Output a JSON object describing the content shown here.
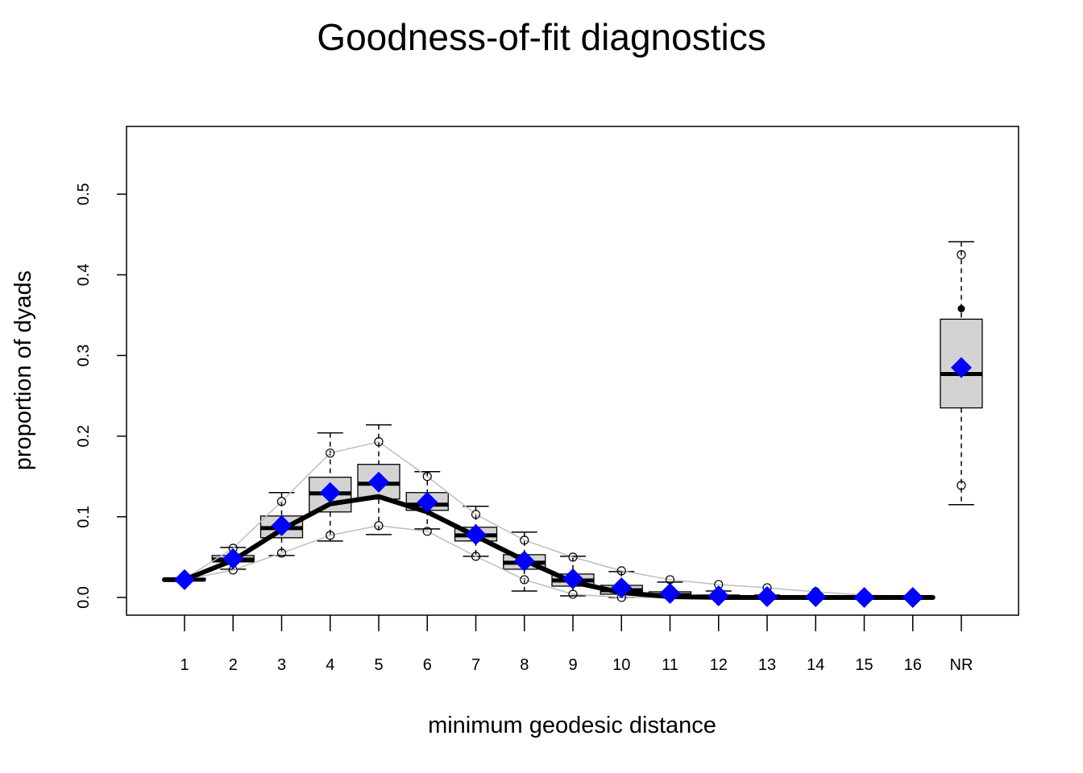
{
  "chart_data": {
    "type": "boxplot",
    "title": "Goodness-of-fit diagnostics",
    "xlabel": "minimum geodesic distance",
    "ylabel": "proportion of dyads",
    "categories": [
      "1",
      "2",
      "3",
      "4",
      "5",
      "6",
      "7",
      "8",
      "9",
      "10",
      "11",
      "12",
      "13",
      "14",
      "15",
      "16",
      "NR"
    ],
    "yticks": [
      "0.0",
      "0.1",
      "0.2",
      "0.3",
      "0.4",
      "0.5"
    ],
    "ylim": [
      -0.022,
      0.584
    ],
    "grid": false,
    "legend": "none",
    "boxes": [
      {
        "x": "1",
        "whisker_low": 0.022,
        "q1": 0.022,
        "median": 0.022,
        "q3": 0.023,
        "whisker_high": 0.023,
        "outliers": []
      },
      {
        "x": "2",
        "whisker_low": 0.035,
        "q1": 0.044,
        "median": 0.047,
        "q3": 0.052,
        "whisker_high": 0.062,
        "outliers": []
      },
      {
        "x": "3",
        "whisker_low": 0.052,
        "q1": 0.074,
        "median": 0.086,
        "q3": 0.101,
        "whisker_high": 0.13,
        "outliers": []
      },
      {
        "x": "4",
        "whisker_low": 0.07,
        "q1": 0.106,
        "median": 0.129,
        "q3": 0.149,
        "whisker_high": 0.204,
        "outliers": []
      },
      {
        "x": "5",
        "whisker_low": 0.078,
        "q1": 0.122,
        "median": 0.141,
        "q3": 0.165,
        "whisker_high": 0.214,
        "outliers": []
      },
      {
        "x": "6",
        "whisker_low": 0.085,
        "q1": 0.108,
        "median": 0.115,
        "q3": 0.13,
        "whisker_high": 0.156,
        "outliers": []
      },
      {
        "x": "7",
        "whisker_low": 0.051,
        "q1": 0.07,
        "median": 0.077,
        "q3": 0.087,
        "whisker_high": 0.113,
        "outliers": []
      },
      {
        "x": "8",
        "whisker_low": 0.008,
        "q1": 0.035,
        "median": 0.043,
        "q3": 0.053,
        "whisker_high": 0.081,
        "outliers": []
      },
      {
        "x": "9",
        "whisker_low": 0.002,
        "q1": 0.014,
        "median": 0.021,
        "q3": 0.029,
        "whisker_high": 0.051,
        "outliers": []
      },
      {
        "x": "10",
        "whisker_low": 0.0,
        "q1": 0.004,
        "median": 0.009,
        "q3": 0.015,
        "whisker_high": 0.032,
        "outliers": []
      },
      {
        "x": "11",
        "whisker_low": 0.0,
        "q1": 0.001,
        "median": 0.003,
        "q3": 0.007,
        "whisker_high": 0.019,
        "outliers": []
      },
      {
        "x": "12",
        "whisker_low": 0.0,
        "q1": 0.0,
        "median": 0.001,
        "q3": 0.003,
        "whisker_high": 0.008,
        "outliers": []
      },
      {
        "x": "13",
        "whisker_low": 0.0,
        "q1": 0.0,
        "median": 0.0,
        "q3": 0.001,
        "whisker_high": 0.003,
        "outliers": []
      },
      {
        "x": "14",
        "whisker_low": 0.0,
        "q1": 0.0,
        "median": 0.0,
        "q3": 0.0,
        "whisker_high": 0.001,
        "outliers": []
      },
      {
        "x": "15",
        "whisker_low": 0.0,
        "q1": 0.0,
        "median": 0.0,
        "q3": 0.0,
        "whisker_high": 0.0,
        "outliers": []
      },
      {
        "x": "16",
        "whisker_low": 0.0,
        "q1": 0.0,
        "median": 0.0,
        "q3": 0.0,
        "whisker_high": 0.0,
        "outliers": []
      },
      {
        "x": "NR",
        "whisker_low": 0.115,
        "q1": 0.235,
        "median": 0.277,
        "q3": 0.345,
        "whisker_high": 0.441,
        "outliers": [
          0.358
        ]
      }
    ],
    "simulated_median_line": [
      0.022,
      0.046,
      0.084,
      0.116,
      0.125,
      0.106,
      0.076,
      0.046,
      0.019,
      0.006,
      0.001,
      0.0,
      0.0,
      0.0,
      0.0,
      0.0
    ],
    "interval_upper": [
      0.023,
      0.061,
      0.119,
      0.179,
      0.193,
      0.15,
      0.103,
      0.071,
      0.05,
      0.033,
      0.022,
      0.016,
      0.012,
      0.007,
      0.003,
      0.001,
      0.425
    ],
    "interval_lower": [
      0.022,
      0.034,
      0.055,
      0.077,
      0.089,
      0.082,
      0.051,
      0.022,
      0.004,
      0.0,
      0.0,
      0.0,
      0.0,
      0.0,
      0.0,
      0.0,
      0.139
    ],
    "observed": [
      0.022,
      0.048,
      0.089,
      0.13,
      0.143,
      0.118,
      0.078,
      0.045,
      0.023,
      0.012,
      0.005,
      0.002,
      0.001,
      0.001,
      0.0,
      0.0,
      0.285
    ],
    "colors": {
      "box_fill": "#d3d3d3",
      "interval_line": "#bebebe",
      "median_line": "#000000",
      "observed_marker": "#0000ff"
    }
  }
}
